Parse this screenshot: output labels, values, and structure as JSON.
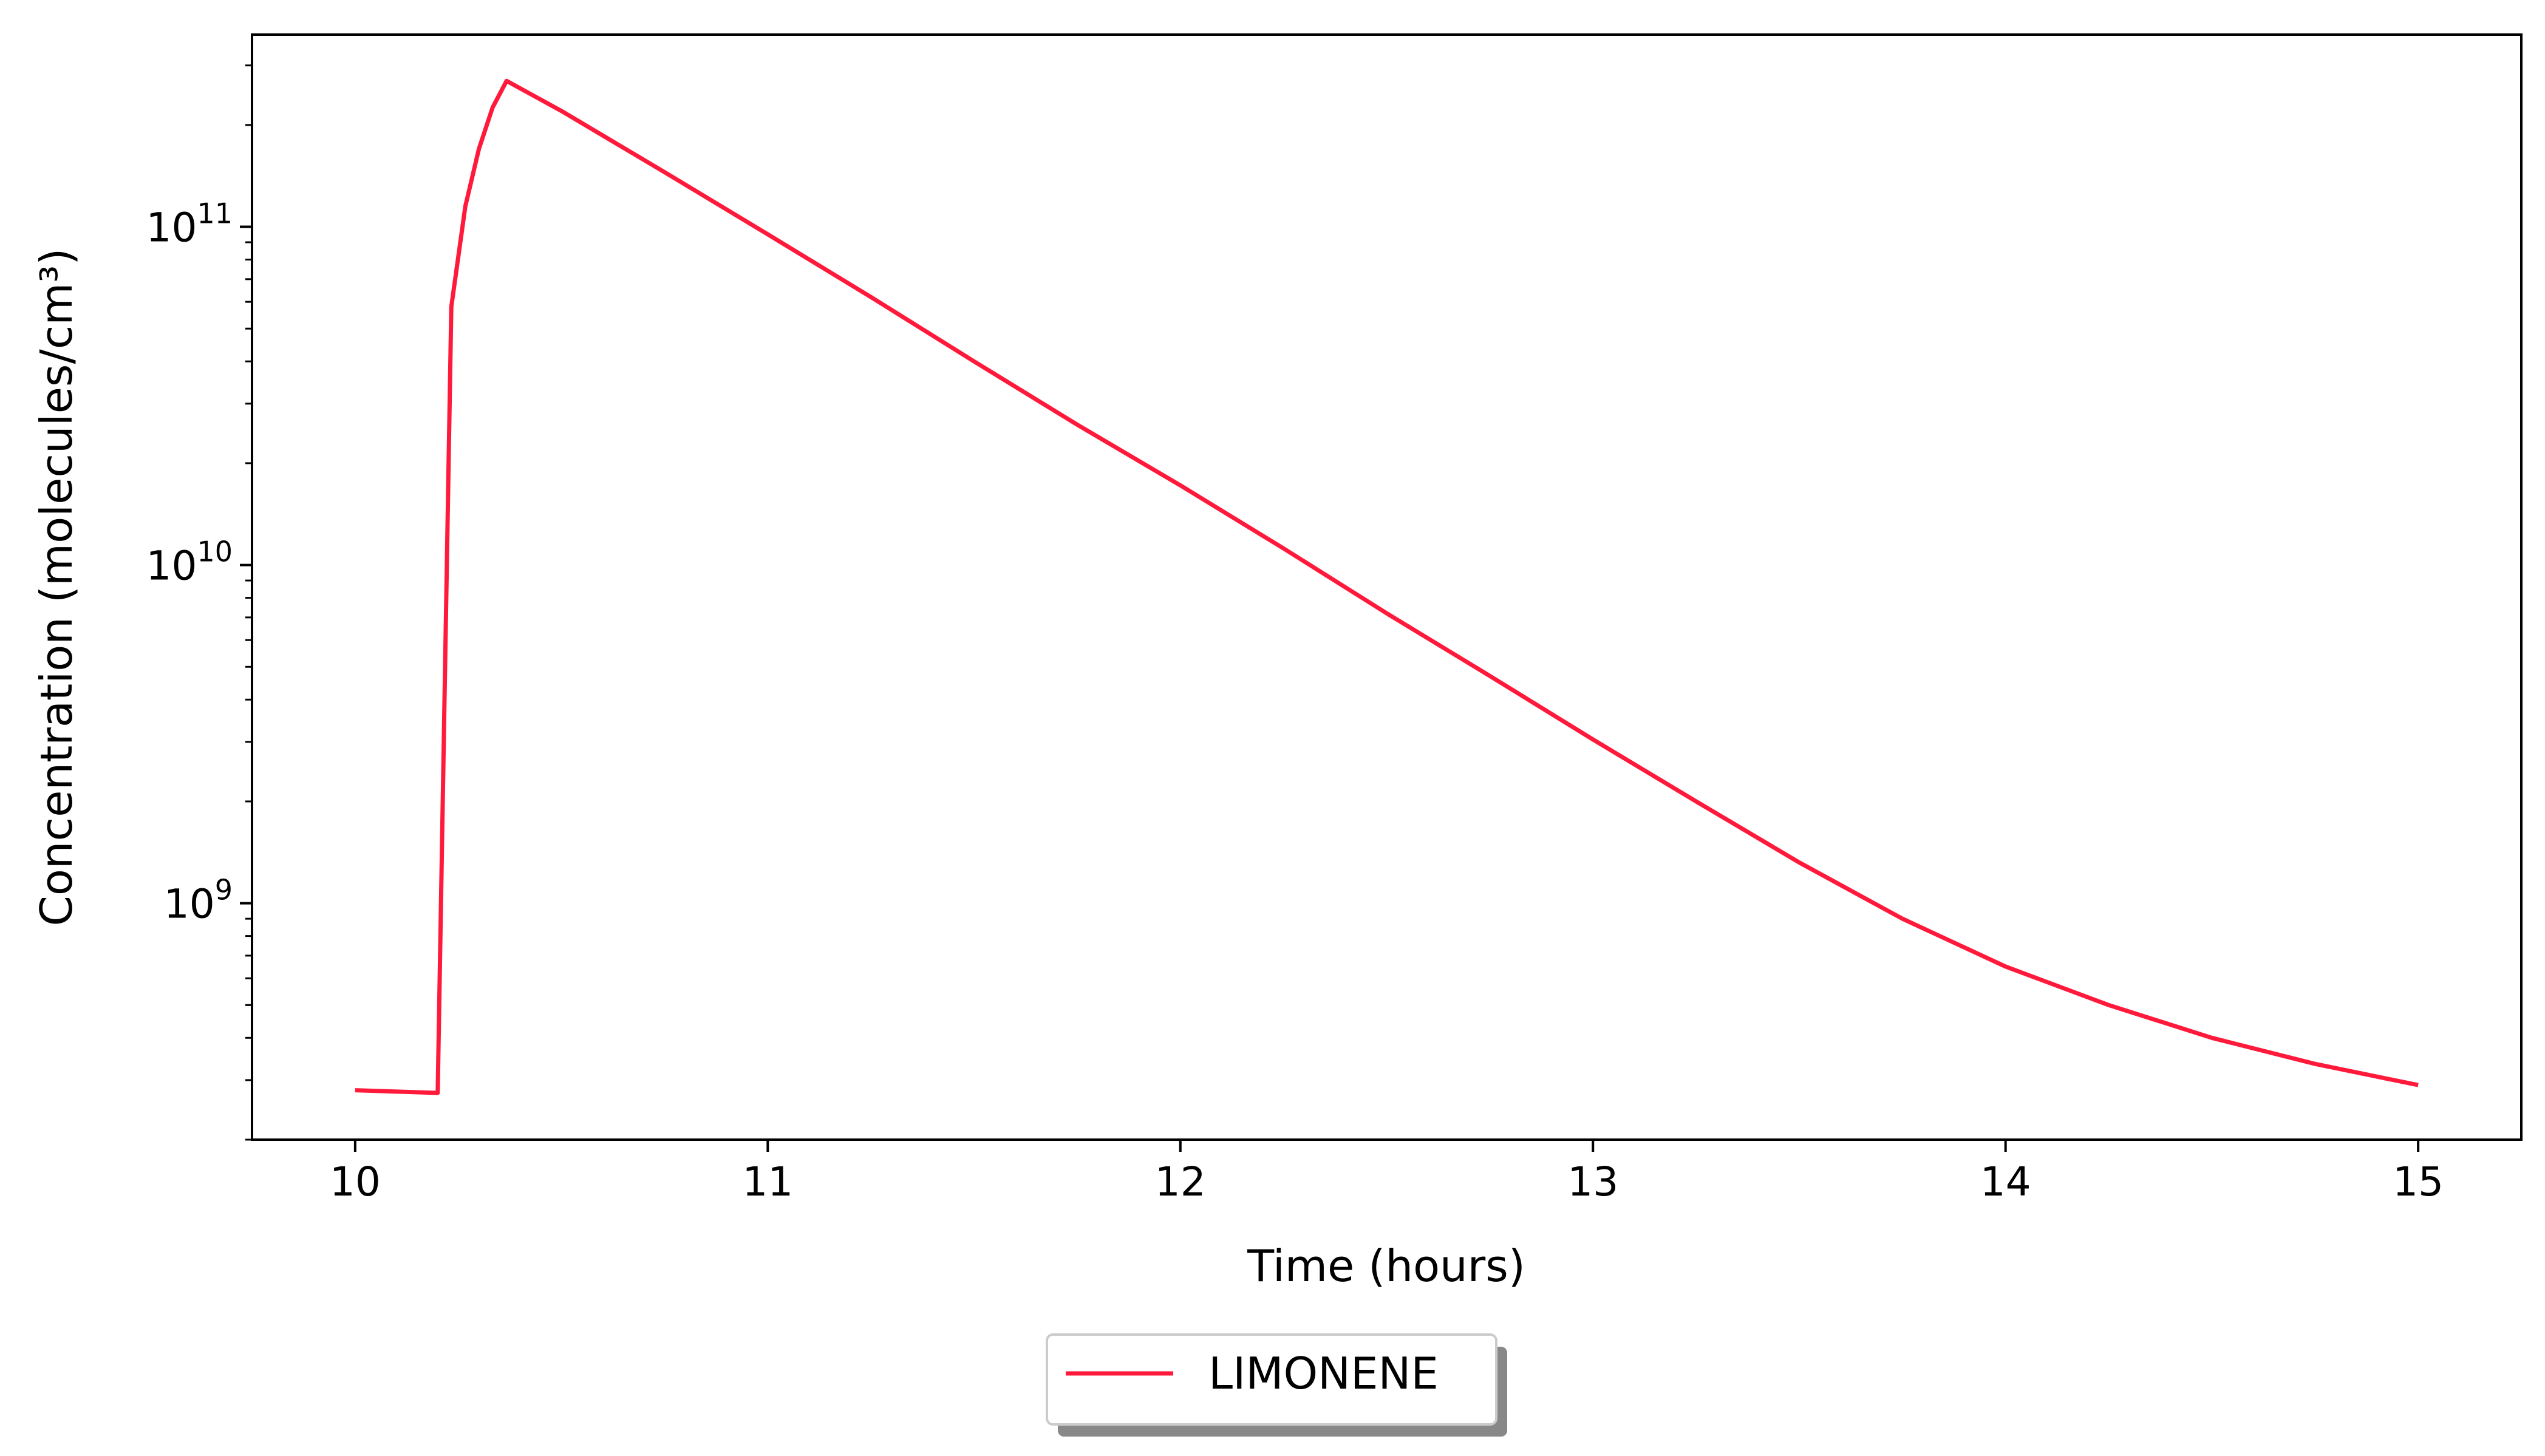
{
  "chart_data": {
    "type": "line",
    "xlabel": "Time (hours)",
    "ylabel": "Concentration (molecules/cm³)",
    "xlim": [
      9.75,
      15.25
    ],
    "ylim": [
      200000000.0,
      370000000000.0
    ],
    "yscale": "log",
    "grid": false,
    "legend_position": "bottom-center",
    "x_ticks": [
      {
        "value": 10,
        "label": "10"
      },
      {
        "value": 11,
        "label": "11"
      },
      {
        "value": 12,
        "label": "12"
      },
      {
        "value": 13,
        "label": "13"
      },
      {
        "value": 14,
        "label": "14"
      },
      {
        "value": 15,
        "label": "15"
      }
    ],
    "y_ticks": [
      {
        "value": 1000000000.0,
        "base": "10",
        "exp": "9"
      },
      {
        "value": 10000000000.0,
        "base": "10",
        "exp": "10"
      },
      {
        "value": 100000000000.0,
        "base": "10",
        "exp": "11"
      }
    ],
    "series": [
      {
        "name": "LIMONENE",
        "color": "#ff1a3c",
        "x": [
          10.0,
          10.2,
          10.233,
          10.267,
          10.3,
          10.333,
          10.367,
          10.5,
          10.75,
          11.0,
          11.25,
          11.5,
          11.75,
          12.0,
          12.25,
          12.5,
          12.75,
          13.0,
          13.25,
          13.5,
          13.75,
          14.0,
          14.25,
          14.5,
          14.75,
          15.0
        ],
        "y": [
          280000000.0,
          275000000.0,
          58000000000.0,
          115000000000.0,
          170000000000.0,
          225000000000.0,
          270000000000.0,
          220000000000.0,
          145000000000.0,
          95000000000.0,
          62000000000.0,
          40000000000.0,
          26000000000.0,
          17200000000.0,
          11200000000.0,
          7200000000.0,
          4700000000.0,
          3050000000.0,
          2000000000.0,
          1320000000.0,
          900000000.0,
          650000000.0,
          500000000.0,
          400000000.0,
          335000000.0,
          290000000.0
        ]
      }
    ]
  }
}
